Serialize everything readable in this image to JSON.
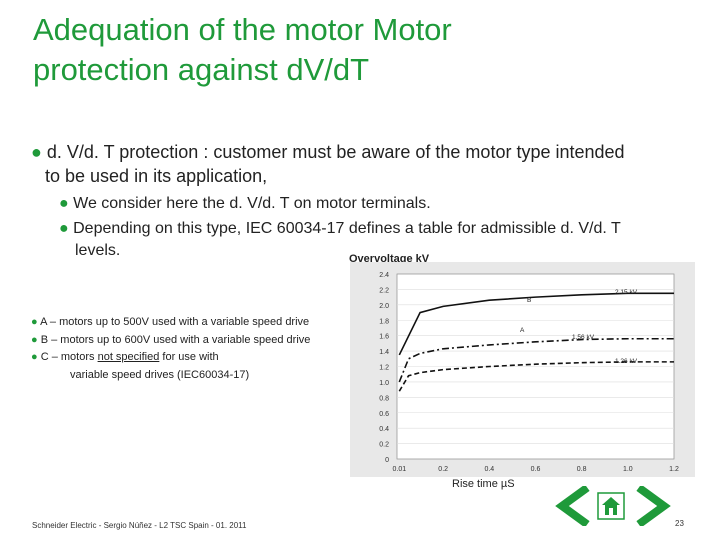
{
  "title": {
    "line1": "Adequation of the motor Motor",
    "line2": "protection against dV/dT"
  },
  "bullet": {
    "line1": "d. V/d. T protection : customer must be aware of the motor type intended",
    "line2": "to be used in its application,"
  },
  "sub_bullets": [
    "We consider here the d. V/d. T on motor terminals.",
    "Depending on this type, IEC 60034-17 defines a table for admissible d. V/d. T",
    "levels."
  ],
  "motor_types": [
    "A – motors up to 500V used with a variable speed drive",
    "B – motors up to 600V used with a variable speed drive",
    "C – motors ",
    "not specified",
    " for use with",
    "variable speed drives (IEC60034-17)"
  ],
  "chart_data": {
    "type": "line",
    "ylabel": "Overvoltage kV",
    "xlabel": "Rise time µS",
    "x_ticks": [
      "0.01",
      "0.2",
      "0.4",
      "0.6",
      "0.8",
      "1.0",
      "1.2"
    ],
    "y_ticks": [
      "0",
      "0.2",
      "0.4",
      "0.6",
      "0.8",
      "1.0",
      "1.2",
      "1.4",
      "1.6",
      "1.8",
      "2.0",
      "2.2",
      "2.4"
    ],
    "xlim": [
      0,
      1.2
    ],
    "ylim": [
      0,
      2.4
    ],
    "series": [
      {
        "name": "B",
        "style": "solid",
        "end_label": "2.15 kV",
        "x": [
          0.01,
          0.1,
          0.2,
          0.4,
          0.6,
          0.8,
          1.0,
          1.2
        ],
        "y": [
          1.35,
          1.9,
          1.98,
          2.06,
          2.1,
          2.13,
          2.15,
          2.15
        ]
      },
      {
        "name": "A",
        "style": "dashdot",
        "end_label": "1.56 kV",
        "x": [
          0.01,
          0.05,
          0.1,
          0.2,
          0.4,
          0.6,
          0.8,
          1.0,
          1.2
        ],
        "y": [
          1.0,
          1.3,
          1.37,
          1.43,
          1.48,
          1.52,
          1.55,
          1.56,
          1.56
        ]
      },
      {
        "name": "",
        "style": "dashed",
        "end_label": "1.26 kV",
        "x": [
          0.01,
          0.05,
          0.1,
          0.2,
          0.4,
          0.6,
          0.8,
          1.0,
          1.2
        ],
        "y": [
          0.88,
          1.08,
          1.12,
          1.16,
          1.2,
          1.23,
          1.25,
          1.26,
          1.26
        ]
      }
    ]
  },
  "footer": "Schneider Electric - Sergio Núñez - L2 TSC Spain - 01. 2011",
  "page_number": "23",
  "colors": {
    "accent": "#1f9a3a",
    "chart_bg": "#e8e8e8"
  },
  "icons": {
    "prev": "chevron-left-icon",
    "home": "home-icon",
    "next": "chevron-right-icon"
  }
}
